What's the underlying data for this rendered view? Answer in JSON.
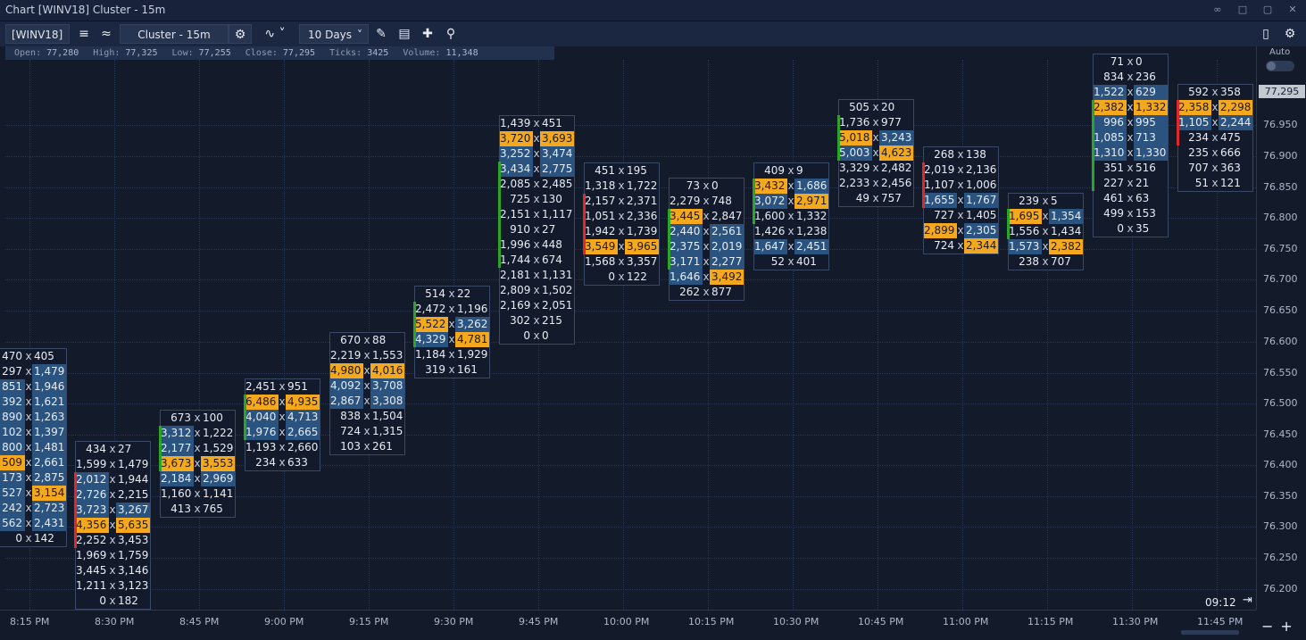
{
  "window": {
    "title": "Chart [WINV18] Cluster - 15m"
  },
  "toolbar": {
    "symbol": "[WINV18]",
    "chart_type": "Cluster - 15m",
    "period": "10 Days"
  },
  "ohlc": {
    "open_label": "Open:",
    "open": "77,280",
    "high_label": "High:",
    "high": "77,325",
    "low_label": "Low:",
    "low": "77,255",
    "close_label": "Close:",
    "close": "77,295",
    "ticks_label": "Ticks:",
    "ticks": "3425",
    "volume_label": "Volume:",
    "volume": "11,348"
  },
  "price_axis": {
    "auto_label": "Auto",
    "last_price": "77,295",
    "labels": [
      "76.950",
      "76.900",
      "76.850",
      "76.800",
      "76.750",
      "76.700",
      "76.650",
      "76.600",
      "76.550",
      "76.500",
      "76.450",
      "76.400",
      "76.350",
      "76.300",
      "76.250",
      "76.200"
    ]
  },
  "time_axis": {
    "labels": [
      "8:15 PM",
      "8:30 PM",
      "8:45 PM",
      "9:00 PM",
      "9:15 PM",
      "9:30 PM",
      "9:45 PM",
      "10:00 PM",
      "10:15 PM",
      "10:30 PM",
      "10:45 PM",
      "11:00 PM",
      "11:15 PM",
      "11:30 PM",
      "11:45 PM"
    ]
  },
  "clock": "09:12",
  "colors": {
    "background": "#131a2a",
    "poc": "#f4a81d",
    "highlight": "#2a5380",
    "up": "#2aa52a",
    "down": "#e02828"
  },
  "clusters": [
    {
      "time": "8:15 PM",
      "mark": "",
      "rows": [
        [
          "470",
          "405",
          "",
          ""
        ],
        [
          "297",
          "1,479",
          "",
          "h"
        ],
        [
          "851",
          "1,946",
          "h",
          "h"
        ],
        [
          "392",
          "1,621",
          "h",
          "h"
        ],
        [
          "890",
          "1,263",
          "h",
          "h"
        ],
        [
          "102",
          "1,397",
          "h",
          "h"
        ],
        [
          "800",
          "1,481",
          "h",
          "h"
        ],
        [
          "509",
          "2,661",
          "p",
          "h"
        ],
        [
          "173",
          "2,875",
          "h",
          "h"
        ],
        [
          "527",
          "3,154",
          "h",
          "p"
        ],
        [
          "242",
          "2,723",
          "h",
          "h"
        ],
        [
          "562",
          "2,431",
          "h",
          "h"
        ],
        [
          "0",
          "142",
          "",
          ""
        ]
      ]
    },
    {
      "time": "8:30 PM",
      "mark": "r",
      "rows": [
        [
          "434",
          "27",
          "",
          ""
        ],
        [
          "1,599",
          "1,479",
          "",
          ""
        ],
        [
          "2,012",
          "1,944",
          "h",
          ""
        ],
        [
          "2,726",
          "2,215",
          "h",
          ""
        ],
        [
          "3,723",
          "3,267",
          "h",
          "h"
        ],
        [
          "4,356",
          "5,635",
          "p",
          "p"
        ],
        [
          "2,252",
          "3,453",
          "",
          ""
        ],
        [
          "1,969",
          "1,759",
          "",
          ""
        ],
        [
          "3,445",
          "3,146",
          "",
          ""
        ],
        [
          "1,211",
          "3,123",
          "",
          ""
        ],
        [
          "0",
          "182",
          "",
          ""
        ]
      ]
    },
    {
      "time": "8:45 PM",
      "mark": "g",
      "rows": [
        [
          "673",
          "100",
          "",
          ""
        ],
        [
          "3,312",
          "1,222",
          "h",
          ""
        ],
        [
          "2,177",
          "1,529",
          "h",
          ""
        ],
        [
          "3,673",
          "3,553",
          "p",
          "p"
        ],
        [
          "2,184",
          "2,969",
          "h",
          "h"
        ],
        [
          "1,160",
          "1,141",
          "",
          ""
        ],
        [
          "413",
          "765",
          "",
          ""
        ]
      ]
    },
    {
      "time": "9:00 PM",
      "mark": "g",
      "rows": [
        [
          "2,451",
          "951",
          "",
          ""
        ],
        [
          "6,486",
          "4,935",
          "p",
          "p"
        ],
        [
          "4,040",
          "4,713",
          "h",
          "h"
        ],
        [
          "1,976",
          "2,665",
          "h",
          "h"
        ],
        [
          "1,193",
          "2,660",
          "",
          ""
        ],
        [
          "234",
          "633",
          "",
          ""
        ]
      ]
    },
    {
      "time": "9:15 PM",
      "mark": "",
      "rows": [
        [
          "670",
          "88",
          "",
          ""
        ],
        [
          "2,219",
          "1,553",
          "",
          ""
        ],
        [
          "4,980",
          "4,016",
          "p",
          "p"
        ],
        [
          "4,092",
          "3,708",
          "h",
          "h"
        ],
        [
          "2,867",
          "3,308",
          "h",
          "h"
        ],
        [
          "838",
          "1,504",
          "",
          ""
        ],
        [
          "724",
          "1,315",
          "",
          ""
        ],
        [
          "103",
          "261",
          "",
          ""
        ]
      ]
    },
    {
      "time": "9:30 PM",
      "mark": "g",
      "rows": [
        [
          "514",
          "22",
          "",
          ""
        ],
        [
          "2,472",
          "1,196",
          "",
          ""
        ],
        [
          "5,522",
          "3,262",
          "p",
          "h"
        ],
        [
          "4,329",
          "4,781",
          "h",
          "p"
        ],
        [
          "1,184",
          "1,929",
          "",
          ""
        ],
        [
          "319",
          "161",
          "",
          ""
        ]
      ]
    },
    {
      "time": "9:45 PM",
      "mark": "g",
      "rows": [
        [
          "1,439",
          "451",
          "",
          ""
        ],
        [
          "3,720",
          "3,693",
          "p",
          "p"
        ],
        [
          "3,252",
          "3,474",
          "h",
          "h"
        ],
        [
          "3,434",
          "2,775",
          "h",
          "h"
        ],
        [
          "2,085",
          "2,485",
          "",
          ""
        ],
        [
          "725",
          "130",
          "",
          ""
        ],
        [
          "2,151",
          "1,117",
          "",
          ""
        ],
        [
          "910",
          "27",
          "",
          ""
        ],
        [
          "1,996",
          "448",
          "",
          ""
        ],
        [
          "1,744",
          "674",
          "",
          ""
        ],
        [
          "2,181",
          "1,131",
          "",
          ""
        ],
        [
          "2,809",
          "1,502",
          "",
          ""
        ],
        [
          "2,169",
          "2,051",
          "",
          ""
        ],
        [
          "302",
          "215",
          "",
          ""
        ],
        [
          "0",
          "0",
          "",
          ""
        ]
      ]
    },
    {
      "time": "10:00 PM",
      "mark": "r",
      "rows": [
        [
          "451",
          "195",
          "",
          ""
        ],
        [
          "1,318",
          "1,722",
          "",
          ""
        ],
        [
          "2,157",
          "2,371",
          "",
          ""
        ],
        [
          "1,051",
          "2,336",
          "",
          ""
        ],
        [
          "1,942",
          "1,739",
          "",
          ""
        ],
        [
          "3,549",
          "3,965",
          "p",
          "p"
        ],
        [
          "1,568",
          "3,357",
          "",
          ""
        ],
        [
          "0",
          "122",
          "",
          ""
        ]
      ]
    },
    {
      "time": "10:15 PM",
      "mark": "g",
      "rows": [
        [
          "73",
          "0",
          "",
          ""
        ],
        [
          "2,279",
          "748",
          "",
          ""
        ],
        [
          "3,445",
          "2,847",
          "p",
          ""
        ],
        [
          "2,440",
          "2,561",
          "h",
          "h"
        ],
        [
          "2,375",
          "2,019",
          "h",
          "h"
        ],
        [
          "3,171",
          "2,277",
          "h",
          "h"
        ],
        [
          "1,646",
          "3,492",
          "h",
          "p"
        ],
        [
          "262",
          "877",
          "",
          ""
        ]
      ]
    },
    {
      "time": "10:30 PM",
      "mark": "g",
      "rows": [
        [
          "409",
          "9",
          "",
          ""
        ],
        [
          "3,432",
          "1,686",
          "p",
          "h"
        ],
        [
          "3,072",
          "2,971",
          "h",
          "p"
        ],
        [
          "1,600",
          "1,332",
          "",
          ""
        ],
        [
          "1,426",
          "1,238",
          "",
          ""
        ],
        [
          "1,647",
          "2,451",
          "h",
          "h"
        ],
        [
          "52",
          "401",
          "",
          ""
        ]
      ]
    },
    {
      "time": "10:45 PM",
      "mark": "g",
      "rows": [
        [
          "505",
          "20",
          "",
          ""
        ],
        [
          "1,736",
          "977",
          "",
          ""
        ],
        [
          "5,018",
          "3,243",
          "p",
          "h"
        ],
        [
          "5,003",
          "4,623",
          "h",
          "p"
        ],
        [
          "3,329",
          "2,482",
          "",
          ""
        ],
        [
          "2,233",
          "2,456",
          "",
          ""
        ],
        [
          "49",
          "757",
          "",
          ""
        ]
      ]
    },
    {
      "time": "11:00 PM",
      "mark": "r",
      "rows": [
        [
          "268",
          "138",
          "",
          ""
        ],
        [
          "2,019",
          "2,136",
          "",
          ""
        ],
        [
          "1,107",
          "1,006",
          "",
          ""
        ],
        [
          "1,655",
          "1,767",
          "h",
          "h"
        ],
        [
          "727",
          "1,405",
          "",
          ""
        ],
        [
          "2,899",
          "2,305",
          "p",
          "h"
        ],
        [
          "724",
          "2,344",
          "",
          "p"
        ]
      ]
    },
    {
      "time": "11:15 PM",
      "mark": "g",
      "rows": [
        [
          "239",
          "5",
          "",
          ""
        ],
        [
          "1,695",
          "1,354",
          "p",
          "h"
        ],
        [
          "1,556",
          "1,434",
          "",
          ""
        ],
        [
          "1,573",
          "2,382",
          "h",
          "p"
        ],
        [
          "238",
          "707",
          "",
          ""
        ]
      ]
    },
    {
      "time": "11:30 PM",
      "mark": "g",
      "rows": [
        [
          "71",
          "0",
          "",
          ""
        ],
        [
          "834",
          "236",
          "",
          ""
        ],
        [
          "1,522",
          "629",
          "h",
          "h"
        ],
        [
          "2,382",
          "1,332",
          "p",
          "p"
        ],
        [
          "996",
          "995",
          "h",
          "h"
        ],
        [
          "1,085",
          "713",
          "h",
          "h"
        ],
        [
          "1,310",
          "1,330",
          "h",
          "h"
        ],
        [
          "351",
          "516",
          "",
          ""
        ],
        [
          "227",
          "21",
          "",
          ""
        ],
        [
          "461",
          "63",
          "",
          ""
        ],
        [
          "499",
          "153",
          "",
          ""
        ],
        [
          "0",
          "35",
          "",
          ""
        ]
      ]
    },
    {
      "time": "11:45 PM",
      "mark": "r",
      "rows": [
        [
          "592",
          "358",
          "",
          ""
        ],
        [
          "2,358",
          "2,298",
          "p",
          "p"
        ],
        [
          "1,105",
          "2,244",
          "h",
          "h"
        ],
        [
          "234",
          "475",
          "",
          ""
        ],
        [
          "235",
          "666",
          "",
          ""
        ],
        [
          "707",
          "363",
          "",
          ""
        ],
        [
          "51",
          "121",
          "",
          ""
        ]
      ]
    }
  ]
}
